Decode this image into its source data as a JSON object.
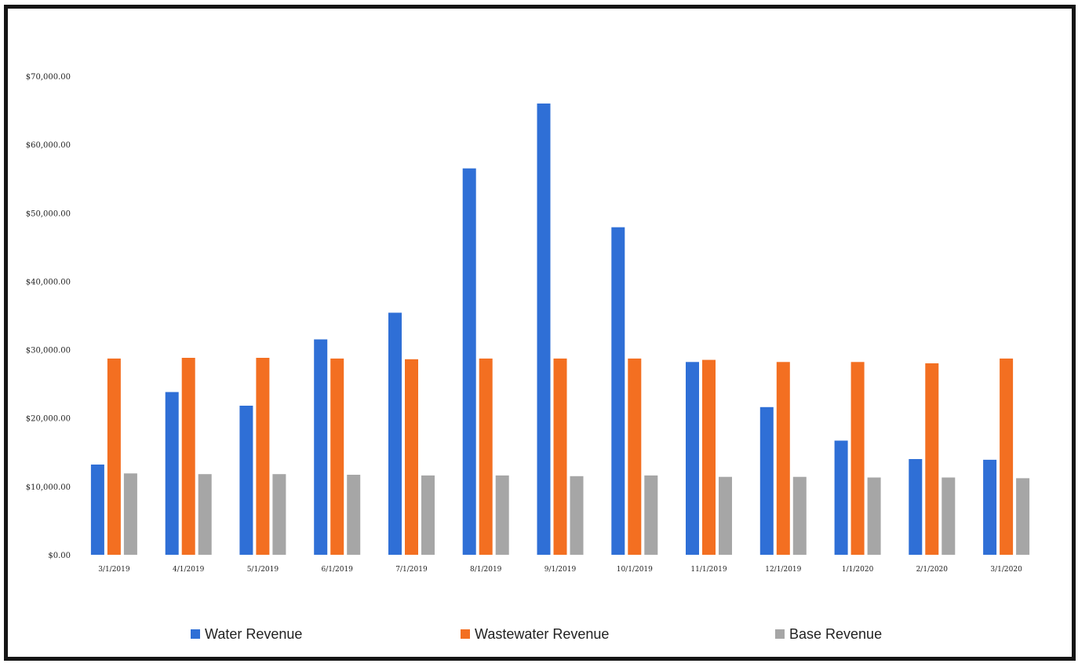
{
  "chart_data": {
    "type": "bar",
    "categories": [
      "3/1/2019",
      "4/1/2019",
      "5/1/2019",
      "6/1/2019",
      "7/1/2019",
      "8/1/2019",
      "9/1/2019",
      "10/1/2019",
      "11/1/2019",
      "12/1/2019",
      "1/1/2020",
      "2/1/2020",
      "3/1/2020"
    ],
    "series": [
      {
        "name": "Water Revenue",
        "color": "#2f6fd6",
        "values": [
          13200,
          23800,
          21800,
          31500,
          35400,
          56500,
          66000,
          47900,
          28200,
          21600,
          16700,
          14000,
          13900
        ]
      },
      {
        "name": "Wastewater Revenue",
        "color": "#f36f21",
        "values": [
          28700,
          28800,
          28800,
          28700,
          28600,
          28700,
          28700,
          28700,
          28500,
          28200,
          28200,
          28000,
          28700
        ]
      },
      {
        "name": "Base Revenue",
        "color": "#a6a6a6",
        "values": [
          11900,
          11800,
          11800,
          11700,
          11600,
          11600,
          11500,
          11600,
          11400,
          11400,
          11300,
          11300,
          11200
        ]
      }
    ],
    "y_ticks": [
      "$0.00",
      "$10,000.00",
      "$20,000.00",
      "$30,000.00",
      "$40,000.00",
      "$50,000.00",
      "$60,000.00",
      "$70,000.00"
    ],
    "ylim": [
      0,
      70000
    ],
    "grid": false,
    "legend_position": "bottom",
    "title": "",
    "xlabel": "",
    "ylabel": ""
  }
}
